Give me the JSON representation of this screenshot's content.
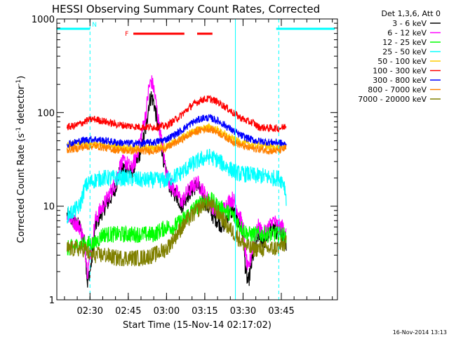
{
  "chart_data": {
    "type": "line",
    "title": "HESSI Observing Summary Count Rates, Corrected",
    "xlabel": "Start Time (15-Nov-14 02:17:02)",
    "ylabel": "Corrected Count Rate (s⁻¹ detector⁻¹)",
    "ylabel_parts": {
      "main": "Corrected Count Rate (s",
      "sup1": "-1",
      "mid": " detector",
      "sup2": "-1",
      "end": ")"
    },
    "yscale": "log",
    "ylim": [
      1,
      1000
    ],
    "xlim_minutes": [
      17,
      127
    ],
    "x_ticks": [
      {
        "label": "02:30",
        "t": 30
      },
      {
        "label": "02:45",
        "t": 45
      },
      {
        "label": "03:00",
        "t": 60
      },
      {
        "label": "03:15",
        "t": 75
      },
      {
        "label": "03:30",
        "t": 90
      },
      {
        "label": "03:45",
        "t": 105
      }
    ],
    "y_ticks": [
      {
        "label": "1",
        "v": 1
      },
      {
        "label": "10",
        "v": 10
      },
      {
        "label": "100",
        "v": 100
      },
      {
        "label": "1000",
        "v": 1000
      }
    ],
    "legend_title": "Det 1,3,6, Att 0",
    "legend_placement": "right",
    "series": [
      {
        "name": "3 - 6 keV",
        "color": "#000000",
        "points": [
          [
            21,
            8
          ],
          [
            26,
            6
          ],
          [
            28,
            4
          ],
          [
            29,
            1.5
          ],
          [
            30,
            2
          ],
          [
            31,
            3
          ],
          [
            32,
            6
          ],
          [
            34,
            8
          ],
          [
            36,
            10
          ],
          [
            38,
            12
          ],
          [
            40,
            16
          ],
          [
            42,
            25
          ],
          [
            44,
            26
          ],
          [
            46,
            22
          ],
          [
            48,
            28
          ],
          [
            50,
            40
          ],
          [
            52,
            70
          ],
          [
            53,
            120
          ],
          [
            54,
            150
          ],
          [
            55,
            130
          ],
          [
            56,
            90
          ],
          [
            58,
            45
          ],
          [
            60,
            20
          ],
          [
            62,
            15
          ],
          [
            64,
            13
          ],
          [
            66,
            10
          ],
          [
            68,
            13
          ],
          [
            70,
            15
          ],
          [
            72,
            17
          ],
          [
            74,
            13
          ],
          [
            76,
            10
          ],
          [
            78,
            8
          ],
          [
            80,
            7
          ],
          [
            82,
            6
          ],
          [
            84,
            8
          ],
          [
            86,
            9
          ],
          [
            88,
            7
          ],
          [
            90,
            5
          ],
          [
            91,
            2
          ],
          [
            92,
            1.5
          ],
          [
            94,
            3
          ],
          [
            96,
            5
          ],
          [
            98,
            4
          ],
          [
            100,
            5
          ],
          [
            102,
            6
          ],
          [
            104,
            5
          ],
          [
            106,
            5
          ],
          [
            107,
            4
          ]
        ]
      },
      {
        "name": "6 - 12 keV",
        "color": "#ff00ff",
        "points": [
          [
            21,
            8
          ],
          [
            26,
            6
          ],
          [
            28,
            4
          ],
          [
            29,
            2
          ],
          [
            30,
            3
          ],
          [
            31,
            4
          ],
          [
            32,
            7
          ],
          [
            34,
            9
          ],
          [
            36,
            11
          ],
          [
            38,
            14
          ],
          [
            40,
            18
          ],
          [
            42,
            28
          ],
          [
            44,
            30
          ],
          [
            46,
            25
          ],
          [
            48,
            32
          ],
          [
            50,
            55
          ],
          [
            52,
            100
          ],
          [
            53,
            180
          ],
          [
            54,
            220
          ],
          [
            55,
            180
          ],
          [
            56,
            120
          ],
          [
            58,
            50
          ],
          [
            60,
            22
          ],
          [
            62,
            16
          ],
          [
            64,
            14
          ],
          [
            66,
            11
          ],
          [
            68,
            14
          ],
          [
            70,
            16
          ],
          [
            72,
            18
          ],
          [
            74,
            15
          ],
          [
            76,
            12
          ],
          [
            78,
            10
          ],
          [
            80,
            9
          ],
          [
            82,
            9
          ],
          [
            84,
            11
          ],
          [
            86,
            12
          ],
          [
            88,
            9
          ],
          [
            90,
            6
          ],
          [
            91,
            3
          ],
          [
            92,
            2
          ],
          [
            94,
            4
          ],
          [
            96,
            6
          ],
          [
            98,
            5
          ],
          [
            100,
            6
          ],
          [
            102,
            7
          ],
          [
            104,
            6
          ],
          [
            106,
            6
          ],
          [
            107,
            5
          ]
        ]
      },
      {
        "name": "12 - 25 keV",
        "color": "#00ff00",
        "points": [
          [
            21,
            3.5
          ],
          [
            25,
            3.8
          ],
          [
            30,
            4
          ],
          [
            32,
            4
          ],
          [
            35,
            5
          ],
          [
            40,
            5
          ],
          [
            45,
            5
          ],
          [
            50,
            5
          ],
          [
            55,
            5
          ],
          [
            60,
            6
          ],
          [
            63,
            6
          ],
          [
            66,
            7
          ],
          [
            70,
            9
          ],
          [
            74,
            11
          ],
          [
            77,
            12
          ],
          [
            80,
            10
          ],
          [
            83,
            9
          ],
          [
            86,
            8
          ],
          [
            89,
            6
          ],
          [
            92,
            5
          ],
          [
            95,
            5
          ],
          [
            98,
            5
          ],
          [
            100,
            5
          ],
          [
            103,
            5
          ],
          [
            106,
            5
          ],
          [
            107,
            4
          ]
        ]
      },
      {
        "name": "25 - 50 keV",
        "color": "#00ffff",
        "points": [
          [
            21,
            8
          ],
          [
            24,
            9
          ],
          [
            26,
            10
          ],
          [
            28,
            16
          ],
          [
            30,
            18
          ],
          [
            32,
            19
          ],
          [
            35,
            20
          ],
          [
            40,
            20
          ],
          [
            45,
            20
          ],
          [
            50,
            19
          ],
          [
            55,
            19
          ],
          [
            60,
            19
          ],
          [
            65,
            22
          ],
          [
            70,
            28
          ],
          [
            74,
            32
          ],
          [
            77,
            34
          ],
          [
            80,
            31
          ],
          [
            83,
            27
          ],
          [
            86,
            24
          ],
          [
            89,
            22
          ],
          [
            92,
            22
          ],
          [
            95,
            21
          ],
          [
            98,
            21
          ],
          [
            101,
            20
          ],
          [
            104,
            20
          ],
          [
            106,
            18
          ],
          [
            107,
            12
          ]
        ]
      },
      {
        "name": "50 - 100 keV",
        "color": "#ffcc00",
        "points": [
          [
            21,
            45
          ],
          [
            24,
            46
          ],
          [
            28,
            47
          ],
          [
            32,
            46
          ],
          [
            36,
            44
          ],
          [
            40,
            43
          ],
          [
            45,
            42
          ],
          [
            50,
            41
          ],
          [
            55,
            42
          ],
          [
            60,
            44
          ],
          [
            65,
            52
          ],
          [
            70,
            62
          ],
          [
            74,
            68
          ],
          [
            77,
            70
          ],
          [
            80,
            65
          ],
          [
            83,
            58
          ],
          [
            86,
            52
          ],
          [
            89,
            48
          ],
          [
            92,
            46
          ],
          [
            95,
            45
          ],
          [
            98,
            44
          ],
          [
            101,
            43
          ],
          [
            104,
            42
          ],
          [
            107,
            44
          ]
        ]
      },
      {
        "name": "100 - 300 keV",
        "color": "#ff0000",
        "points": [
          [
            21,
            70
          ],
          [
            24,
            72
          ],
          [
            28,
            80
          ],
          [
            30,
            84
          ],
          [
            32,
            85
          ],
          [
            36,
            80
          ],
          [
            40,
            75
          ],
          [
            45,
            72
          ],
          [
            50,
            70
          ],
          [
            55,
            70
          ],
          [
            60,
            72
          ],
          [
            65,
            90
          ],
          [
            70,
            120
          ],
          [
            74,
            138
          ],
          [
            77,
            140
          ],
          [
            80,
            130
          ],
          [
            83,
            115
          ],
          [
            86,
            100
          ],
          [
            89,
            88
          ],
          [
            92,
            80
          ],
          [
            94,
            78
          ],
          [
            96,
            70
          ],
          [
            98,
            69
          ],
          [
            101,
            68
          ],
          [
            104,
            68
          ],
          [
            106,
            70
          ],
          [
            107,
            75
          ]
        ]
      },
      {
        "name": "300 - 800 keV",
        "color": "#0000ff",
        "points": [
          [
            21,
            46
          ],
          [
            24,
            48
          ],
          [
            28,
            51
          ],
          [
            32,
            52
          ],
          [
            36,
            50
          ],
          [
            40,
            48
          ],
          [
            45,
            47
          ],
          [
            50,
            47
          ],
          [
            55,
            48
          ],
          [
            60,
            52
          ],
          [
            65,
            62
          ],
          [
            70,
            78
          ],
          [
            74,
            87
          ],
          [
            77,
            88
          ],
          [
            80,
            82
          ],
          [
            83,
            73
          ],
          [
            86,
            64
          ],
          [
            89,
            57
          ],
          [
            92,
            53
          ],
          [
            95,
            50
          ],
          [
            98,
            49
          ],
          [
            101,
            48
          ],
          [
            104,
            48
          ],
          [
            107,
            45
          ]
        ]
      },
      {
        "name": "800 - 7000 keV",
        "color": "#ff8000",
        "points": [
          [
            21,
            40
          ],
          [
            24,
            41
          ],
          [
            28,
            43
          ],
          [
            32,
            44
          ],
          [
            36,
            42
          ],
          [
            40,
            40
          ],
          [
            45,
            39
          ],
          [
            50,
            39
          ],
          [
            55,
            39
          ],
          [
            60,
            42
          ],
          [
            65,
            50
          ],
          [
            70,
            60
          ],
          [
            74,
            66
          ],
          [
            77,
            67
          ],
          [
            80,
            62
          ],
          [
            83,
            55
          ],
          [
            86,
            49
          ],
          [
            89,
            45
          ],
          [
            92,
            42
          ],
          [
            95,
            41
          ],
          [
            98,
            40
          ],
          [
            101,
            39
          ],
          [
            104,
            39
          ],
          [
            107,
            42
          ]
        ]
      },
      {
        "name": "7000 - 20000 keV",
        "color": "#808000",
        "points": [
          [
            21,
            3.5
          ],
          [
            25,
            3.5
          ],
          [
            28,
            3.5
          ],
          [
            30,
            3
          ],
          [
            33,
            3
          ],
          [
            36,
            3
          ],
          [
            40,
            2.8
          ],
          [
            45,
            2.8
          ],
          [
            50,
            2.8
          ],
          [
            55,
            3
          ],
          [
            60,
            3.5
          ],
          [
            64,
            5
          ],
          [
            68,
            7
          ],
          [
            72,
            9
          ],
          [
            75,
            11
          ],
          [
            78,
            10
          ],
          [
            81,
            8
          ],
          [
            84,
            6
          ],
          [
            87,
            5
          ],
          [
            90,
            4
          ],
          [
            93,
            3.5
          ],
          [
            96,
            3.5
          ],
          [
            99,
            3.5
          ],
          [
            102,
            3.5
          ],
          [
            105,
            3.8
          ],
          [
            107,
            4
          ]
        ]
      }
    ],
    "flags": [
      {
        "label": "N",
        "color": "#00ffff",
        "segments": [
          [
            17,
            30
          ],
          [
            103,
            126
          ]
        ]
      },
      {
        "label": "F",
        "color": "#ff0000",
        "segments": [
          [
            47,
            67
          ],
          [
            72,
            78
          ]
        ]
      }
    ],
    "boundaries": [
      {
        "t": 30,
        "style": "dashed",
        "color": "#00ffff"
      },
      {
        "t": 87,
        "style": "solid",
        "color": "#00ffff"
      },
      {
        "t": 104,
        "style": "dashed",
        "color": "#00ffff"
      }
    ],
    "grid": false
  },
  "footer": {
    "timestamp": "16-Nov-2014 13:13"
  }
}
